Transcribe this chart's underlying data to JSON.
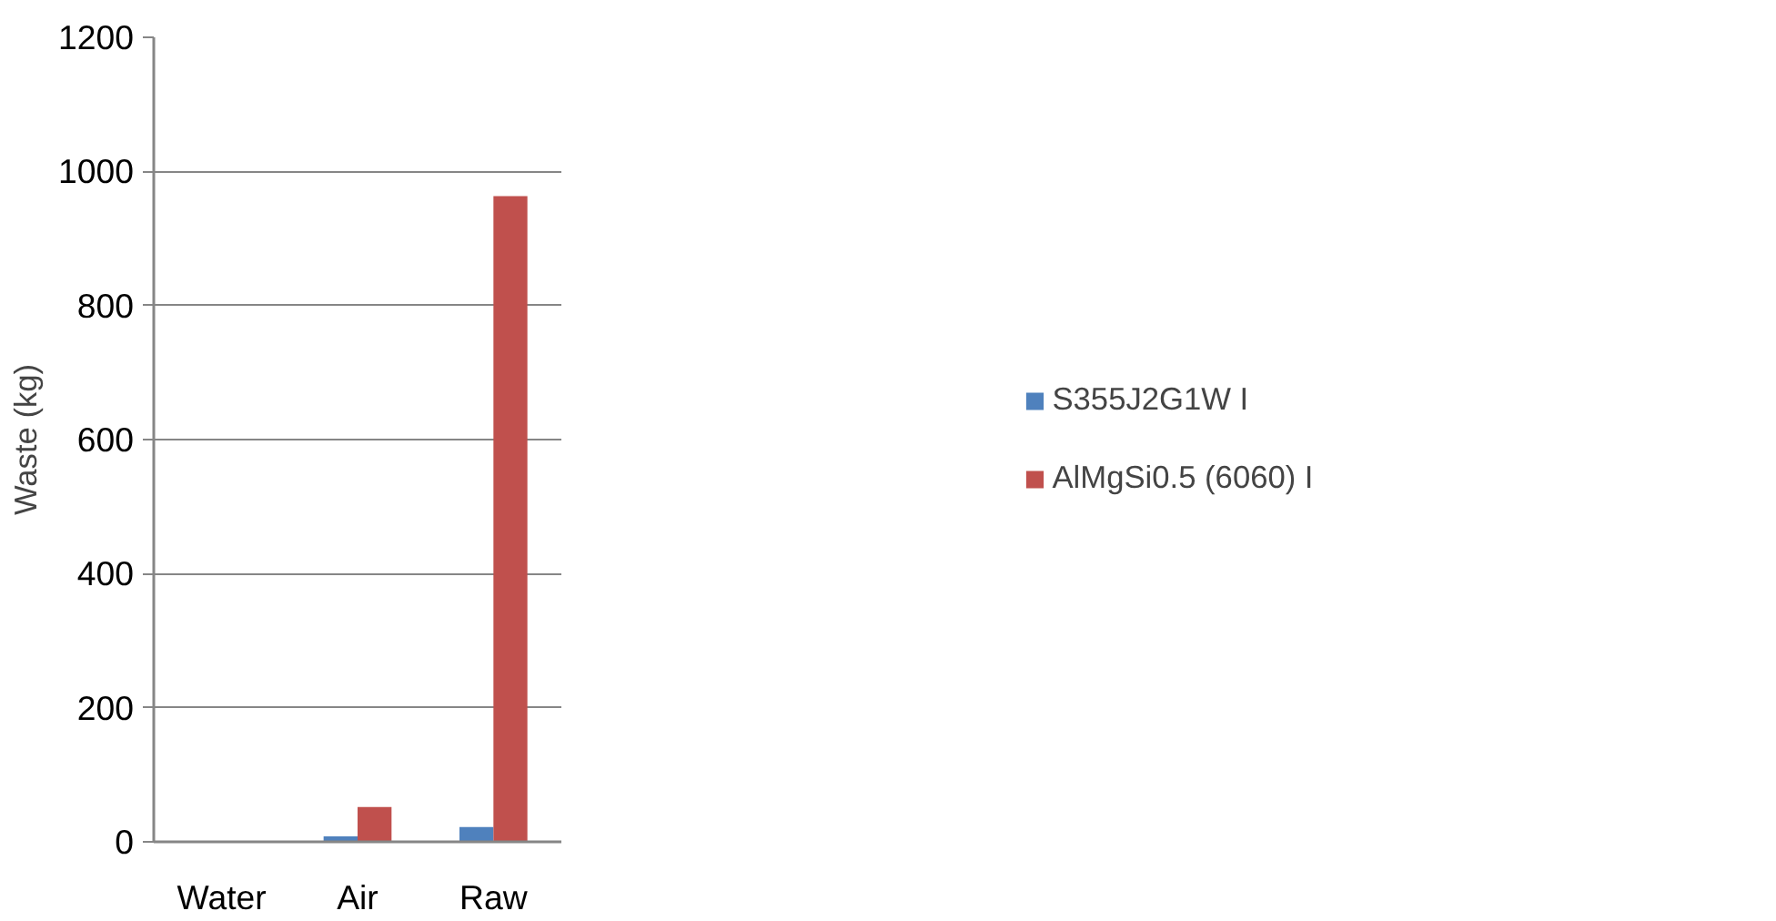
{
  "chart_data": {
    "type": "bar",
    "ylabel": "Waste (kg)",
    "categories": [
      "Water",
      "Air",
      "Raw"
    ],
    "series": [
      {
        "name": "S355J2G1W I",
        "color": "#4f81bd",
        "values": [
          0,
          8,
          22
        ]
      },
      {
        "name": "AlMgSi0.5 (6060) I",
        "color": "#c0504d",
        "values": [
          0,
          52,
          963
        ]
      }
    ],
    "ylim": [
      0,
      1200
    ],
    "yticks": [
      0,
      200,
      400,
      600,
      800,
      1000,
      1200
    ],
    "grid": "y",
    "legend": "right"
  }
}
